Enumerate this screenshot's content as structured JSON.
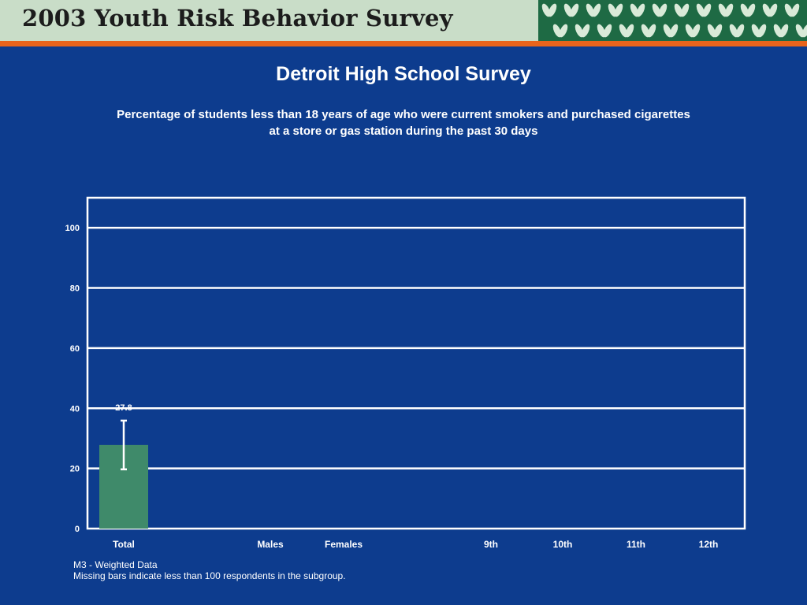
{
  "header": {
    "title": "2003 Youth Risk Behavior Survey"
  },
  "colors": {
    "background": "#0d3c8e",
    "header_band": "#c9ddc8",
    "accent_bar": "#e8641c",
    "leaf_pattern": "#1e6a44",
    "bar": "#3f8a6a",
    "grid": "#ffffff",
    "text": "#ffffff"
  },
  "title": "Detroit High School Survey",
  "subtitle_lines": [
    "Percentage of students less than 18 years of age who were current smokers and purchased cigarettes",
    "at a store or gas station during the past 30 days"
  ],
  "chart_data": {
    "type": "bar",
    "categories": [
      "Total",
      "Males",
      "Females",
      "9th",
      "10th",
      "11th",
      "12th"
    ],
    "values": [
      27.8,
      null,
      null,
      null,
      null,
      null,
      null
    ],
    "value_labels": [
      "27.8",
      "",
      "",
      "",
      "",
      "",
      ""
    ],
    "error_bars": [
      [
        19.7,
        35.9
      ],
      null,
      null,
      null,
      null,
      null,
      null
    ],
    "ylim": [
      0,
      110
    ],
    "yticks": [
      0,
      20,
      40,
      60,
      80,
      100
    ],
    "ytick_labels": [
      "0",
      "20",
      "40",
      "60",
      "80",
      "100"
    ],
    "grid": true,
    "xlabel": "",
    "ylabel": ""
  },
  "footnotes": [
    "M3 - Weighted Data",
    "Missing bars indicate less than 100 respondents in the subgroup."
  ]
}
